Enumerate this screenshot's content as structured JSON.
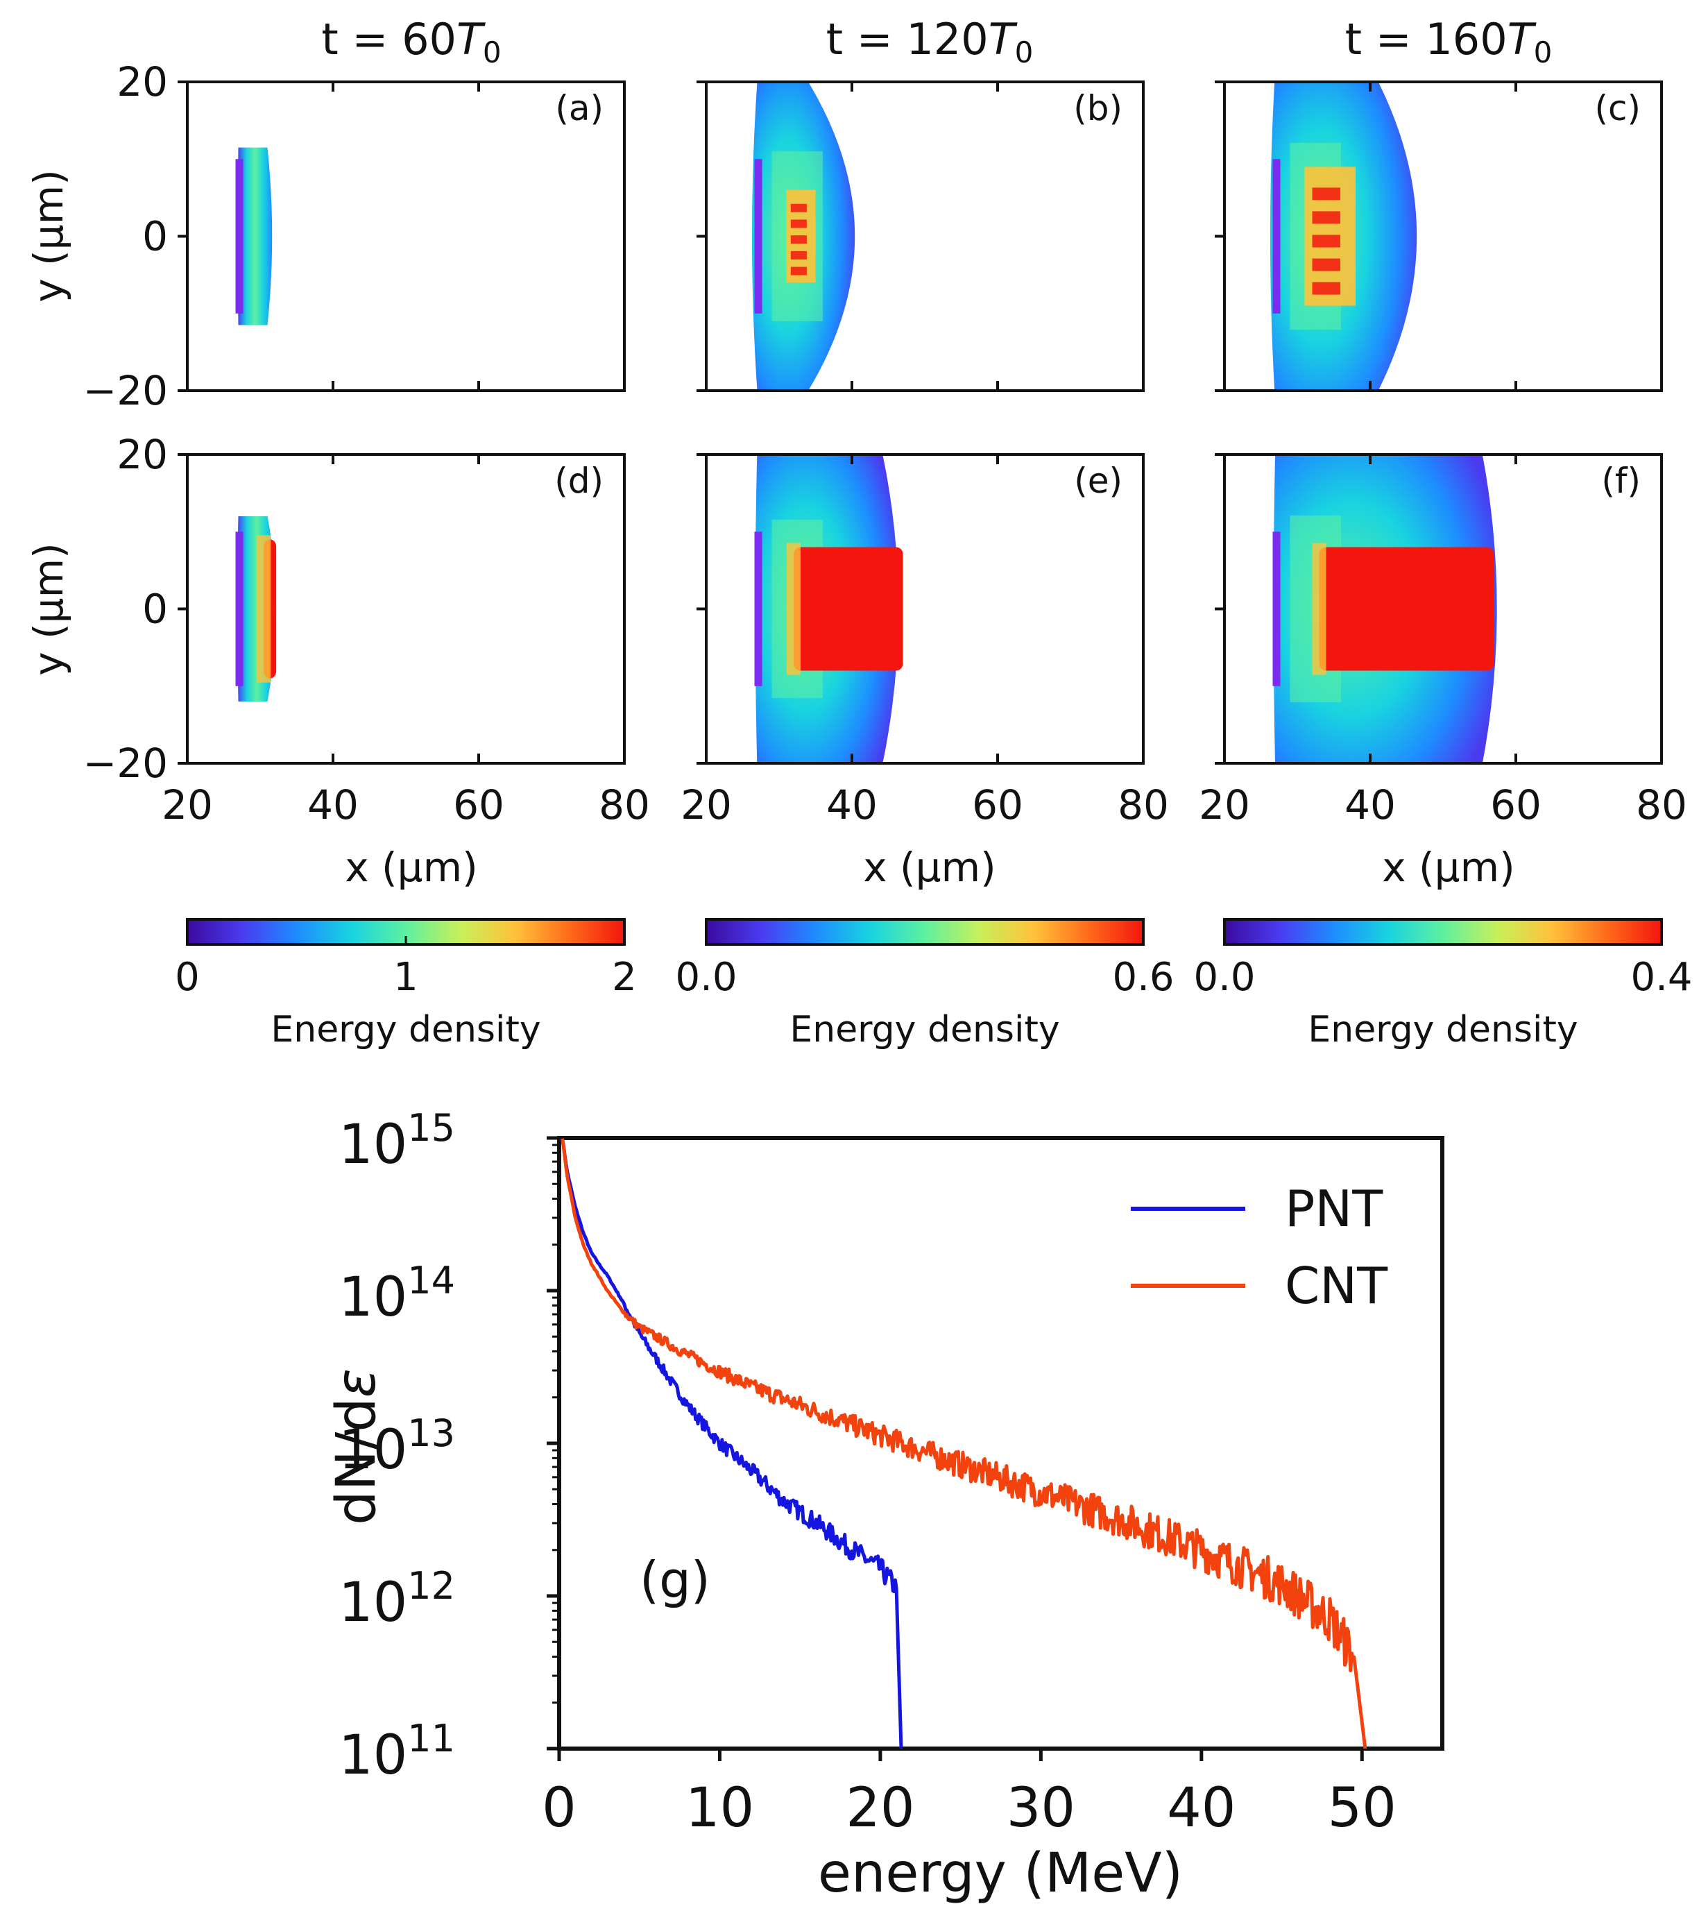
{
  "figure": {
    "column_titles": [
      {
        "prefix": "t = 60",
        "var": "T",
        "sub": "0"
      },
      {
        "prefix": "t = 120",
        "var": "T",
        "sub": "0"
      },
      {
        "prefix": "t = 160",
        "var": "T",
        "sub": "0"
      }
    ],
    "panel_labels": [
      "(a)",
      "(b)",
      "(c)",
      "(d)",
      "(e)",
      "(f)"
    ],
    "y_axis_label": "y (μm)",
    "x_axis_label": "x (μm)",
    "colorbar_label": "Energy density",
    "colorbars": [
      {
        "min": 0,
        "max": 2,
        "ticks": [
          "0",
          "1",
          "2"
        ]
      },
      {
        "min": 0.0,
        "max": 0.6,
        "ticks": [
          "0.0",
          "0.6"
        ]
      },
      {
        "min": 0.0,
        "max": 0.4,
        "ticks": [
          "0.0",
          "0.4"
        ]
      }
    ],
    "colormap": [
      "#3b0a9e",
      "#4a3bf0",
      "#1e8cff",
      "#19d3e0",
      "#5ef0a0",
      "#c8f05a",
      "#ffc23a",
      "#ff6a1a",
      "#f2160e"
    ]
  },
  "chart_data": [
    {
      "type": "heatmap",
      "panel": "(a)",
      "title": "t = 60T0",
      "xlabel": "x (μm)",
      "ylabel": "y (μm)",
      "xlim": [
        20,
        80
      ],
      "ylim": [
        -20,
        20
      ],
      "xticks": [
        20,
        40,
        60,
        80
      ],
      "yticks": [
        -20,
        0,
        20
      ],
      "x_tick_labels": [],
      "y_tick_labels": [
        "20",
        "0",
        "−20"
      ],
      "region": {
        "x_left": 27,
        "x_right": 31,
        "y_half": 11.5,
        "bulge": 0.8
      },
      "hot_core": null,
      "colorbar_range": [
        0,
        2
      ]
    },
    {
      "type": "heatmap",
      "panel": "(b)",
      "title": "t = 120T0",
      "xlabel": "x (μm)",
      "ylabel": "y (μm)",
      "xlim": [
        20,
        80
      ],
      "ylim": [
        -20,
        20
      ],
      "xticks": [
        20,
        40,
        60,
        80
      ],
      "yticks": [
        -20,
        0,
        20
      ],
      "x_tick_labels": [],
      "y_tick_labels": [],
      "region": {
        "x_left": 27,
        "x_right": 34,
        "y_half": 20,
        "bulge": 8
      },
      "hot_core": {
        "x0": 31,
        "x1": 35,
        "y_half": 6,
        "intensity": "patchy"
      },
      "colorbar_range": [
        0.0,
        0.6
      ]
    },
    {
      "type": "heatmap",
      "panel": "(c)",
      "title": "t = 160T0",
      "xlabel": "x (μm)",
      "ylabel": "y (μm)",
      "xlim": [
        20,
        80
      ],
      "ylim": [
        -20,
        20
      ],
      "xticks": [
        20,
        40,
        60,
        80
      ],
      "yticks": [
        -20,
        0,
        20
      ],
      "x_tick_labels": [],
      "y_tick_labels": [],
      "region": {
        "x_left": 27,
        "x_right": 40,
        "y_half": 22,
        "bulge": 8
      },
      "hot_core": {
        "x0": 31,
        "x1": 38,
        "y_half": 9,
        "intensity": "patchy"
      },
      "colorbar_range": [
        0.0,
        0.4
      ]
    },
    {
      "type": "heatmap",
      "panel": "(d)",
      "title": "",
      "xlabel": "x (μm)",
      "ylabel": "y (μm)",
      "xlim": [
        20,
        80
      ],
      "ylim": [
        -20,
        20
      ],
      "xticks": [
        20,
        40,
        60,
        80
      ],
      "yticks": [
        -20,
        0,
        20
      ],
      "x_tick_labels": [
        "20",
        "40",
        "60",
        "80"
      ],
      "y_tick_labels": [
        "20",
        "0",
        "−20"
      ],
      "region": {
        "x_left": 27,
        "x_right": 31,
        "y_half": 12,
        "bulge": 1.5
      },
      "hot_core": {
        "x0": 30.5,
        "x1": 32.2,
        "y_half": 9,
        "intensity": "solid"
      },
      "colorbar_range": [
        0,
        2
      ]
    },
    {
      "type": "heatmap",
      "panel": "(e)",
      "title": "",
      "xlabel": "x (μm)",
      "ylabel": "y (μm)",
      "xlim": [
        20,
        80
      ],
      "ylim": [
        -20,
        20
      ],
      "xticks": [
        20,
        40,
        60,
        80
      ],
      "yticks": [
        -20,
        0,
        20
      ],
      "x_tick_labels": [
        "20",
        "40",
        "60",
        "80"
      ],
      "y_tick_labels": [],
      "region": {
        "x_left": 27,
        "x_right": 44,
        "y_half": 21,
        "bulge": 3
      },
      "hot_core": {
        "x0": 32,
        "x1": 47,
        "y_half": 8,
        "intensity": "solid"
      },
      "colorbar_range": [
        0.0,
        0.6
      ]
    },
    {
      "type": "heatmap",
      "panel": "(f)",
      "title": "",
      "xlabel": "x (μm)",
      "ylabel": "y (μm)",
      "xlim": [
        20,
        80
      ],
      "ylim": [
        -20,
        20
      ],
      "xticks": [
        20,
        40,
        60,
        80
      ],
      "yticks": [
        -20,
        0,
        20
      ],
      "x_tick_labels": [
        "20",
        "40",
        "60",
        "80"
      ],
      "y_tick_labels": [],
      "region": {
        "x_left": 27,
        "x_right": 55,
        "y_half": 22,
        "bulge": 3
      },
      "hot_core": {
        "x0": 33,
        "x1": 57,
        "y_half": 8,
        "intensity": "solid"
      },
      "colorbar_range": [
        0.0,
        0.4
      ]
    },
    {
      "type": "line",
      "panel": "(g)",
      "title": "",
      "xlabel": "energy (MeV)",
      "ylabel": "dN/dε",
      "ylabel_base": "dN/d",
      "ylabel_symbol": "ε",
      "xscale": "linear",
      "yscale": "log",
      "xlim": [
        0,
        55
      ],
      "ylim_exp": [
        11,
        15
      ],
      "xticks": [
        "0",
        "10",
        "20",
        "30",
        "40",
        "50"
      ],
      "yticks": [
        {
          "base": "10",
          "exp": "15"
        },
        {
          "base": "10",
          "exp": "14"
        },
        {
          "base": "10",
          "exp": "13"
        },
        {
          "base": "10",
          "exp": "12"
        },
        {
          "base": "10",
          "exp": "11"
        }
      ],
      "legend_position": "top-right",
      "series": [
        {
          "name": "PNT",
          "color": "#1515e0",
          "x": [
            0.2,
            0.5,
            1,
            1.5,
            2,
            2.5,
            3,
            4,
            5,
            6,
            7,
            8,
            9,
            10,
            12,
            14,
            16,
            18,
            20,
            21.0
          ],
          "log10_y": [
            15.0,
            14.78,
            14.55,
            14.38,
            14.25,
            14.17,
            14.1,
            13.92,
            13.72,
            13.56,
            13.4,
            13.25,
            13.12,
            13.0,
            12.82,
            12.62,
            12.48,
            12.32,
            12.18,
            12.05
          ],
          "cutoff_x": 21.3
        },
        {
          "name": "CNT",
          "color": "#f2420d",
          "x": [
            0.2,
            0.5,
            1,
            1.5,
            2,
            3,
            4,
            5,
            6,
            8,
            10,
            12,
            15,
            20,
            25,
            30,
            35,
            40,
            45,
            48,
            49.5
          ],
          "log10_y": [
            15.0,
            14.75,
            14.48,
            14.3,
            14.18,
            14.0,
            13.86,
            13.76,
            13.7,
            13.58,
            13.47,
            13.37,
            13.25,
            13.05,
            12.86,
            12.68,
            12.5,
            12.3,
            12.08,
            11.85,
            11.6
          ],
          "cutoff_x": 50.2
        }
      ],
      "annotation": "(g)"
    }
  ]
}
